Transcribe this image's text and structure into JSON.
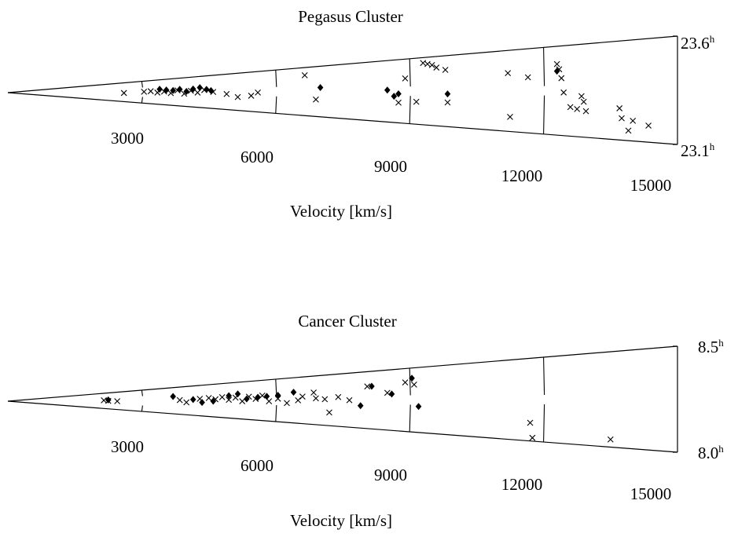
{
  "chart_data": [
    {
      "type": "scatter",
      "title": "Pegasus Cluster",
      "xlabel": "Velocity [km/s]",
      "ra_labels": [
        {
          "value": "23.6",
          "sup": "h"
        },
        {
          "value": "23.1",
          "sup": "h"
        }
      ],
      "ra_range": [
        23.1,
        23.6
      ],
      "velocity_range": [
        0,
        15000
      ],
      "velocity_ticks": [
        3000,
        6000,
        9000,
        12000,
        15000
      ],
      "projection": "wedge (cone diagram)",
      "series": [
        {
          "marker": "cross",
          "points": [
            {
              "v": 2600,
              "ra": 23.33
            },
            {
              "v": 3050,
              "ra": 23.36
            },
            {
              "v": 3200,
              "ra": 23.37
            },
            {
              "v": 3350,
              "ra": 23.34
            },
            {
              "v": 3500,
              "ra": 23.36
            },
            {
              "v": 3650,
              "ra": 23.33
            },
            {
              "v": 3800,
              "ra": 23.38
            },
            {
              "v": 3950,
              "ra": 23.32
            },
            {
              "v": 4100,
              "ra": 23.37
            },
            {
              "v": 4250,
              "ra": 23.34
            },
            {
              "v": 4400,
              "ra": 23.38
            },
            {
              "v": 4600,
              "ra": 23.35
            },
            {
              "v": 4900,
              "ra": 23.32
            },
            {
              "v": 5150,
              "ra": 23.28
            },
            {
              "v": 5450,
              "ra": 23.3
            },
            {
              "v": 5600,
              "ra": 23.34
            },
            {
              "v": 6650,
              "ra": 23.52
            },
            {
              "v": 6900,
              "ra": 23.27
            },
            {
              "v": 8750,
              "ra": 23.26
            },
            {
              "v": 8900,
              "ra": 23.45
            },
            {
              "v": 9150,
              "ra": 23.27
            },
            {
              "v": 9300,
              "ra": 23.56
            },
            {
              "v": 9400,
              "ra": 23.55
            },
            {
              "v": 9500,
              "ra": 23.54
            },
            {
              "v": 9600,
              "ra": 23.52
            },
            {
              "v": 9800,
              "ra": 23.5
            },
            {
              "v": 9850,
              "ra": 23.27
            },
            {
              "v": 11200,
              "ra": 23.46
            },
            {
              "v": 11250,
              "ra": 23.19
            },
            {
              "v": 11650,
              "ra": 23.43
            },
            {
              "v": 12300,
              "ra": 23.5
            },
            {
              "v": 12350,
              "ra": 23.47
            },
            {
              "v": 12400,
              "ra": 23.42
            },
            {
              "v": 12450,
              "ra": 23.34
            },
            {
              "v": 12600,
              "ra": 23.26
            },
            {
              "v": 12750,
              "ra": 23.25
            },
            {
              "v": 12850,
              "ra": 23.32
            },
            {
              "v": 12900,
              "ra": 23.29
            },
            {
              "v": 12950,
              "ra": 23.24
            },
            {
              "v": 13700,
              "ra": 23.26
            },
            {
              "v": 13750,
              "ra": 23.21
            },
            {
              "v": 13900,
              "ra": 23.15
            },
            {
              "v": 14000,
              "ra": 23.2
            },
            {
              "v": 14350,
              "ra": 23.18
            }
          ]
        },
        {
          "marker": "diamond",
          "points": [
            {
              "v": 3400,
              "ra": 23.41
            },
            {
              "v": 3550,
              "ra": 23.39
            },
            {
              "v": 3700,
              "ra": 23.38
            },
            {
              "v": 3850,
              "ra": 23.4
            },
            {
              "v": 4000,
              "ra": 23.36
            },
            {
              "v": 4150,
              "ra": 23.4
            },
            {
              "v": 4300,
              "ra": 23.42
            },
            {
              "v": 4450,
              "ra": 23.39
            },
            {
              "v": 4550,
              "ra": 23.37
            },
            {
              "v": 7000,
              "ra": 23.39
            },
            {
              "v": 8500,
              "ra": 23.36
            },
            {
              "v": 8650,
              "ra": 23.31
            },
            {
              "v": 8750,
              "ra": 23.33
            },
            {
              "v": 9850,
              "ra": 23.33
            },
            {
              "v": 12300,
              "ra": 23.46
            }
          ]
        }
      ]
    },
    {
      "type": "scatter",
      "title": "Cancer Cluster",
      "xlabel": "Velocity [km/s]",
      "ra_labels": [
        {
          "value": "8.5",
          "sup": "h"
        },
        {
          "value": "8.0",
          "sup": "h"
        }
      ],
      "ra_range": [
        8.0,
        8.5
      ],
      "velocity_range": [
        0,
        15000
      ],
      "velocity_ticks": [
        3000,
        6000,
        9000,
        12000,
        15000
      ],
      "projection": "wedge (cone diagram)",
      "series": [
        {
          "marker": "cross",
          "points": [
            {
              "v": 2150,
              "ra": 8.27
            },
            {
              "v": 2250,
              "ra": 8.25
            },
            {
              "v": 2450,
              "ra": 8.24
            },
            {
              "v": 3850,
              "ra": 8.26
            },
            {
              "v": 4000,
              "ra": 8.22
            },
            {
              "v": 4300,
              "ra": 8.28
            },
            {
              "v": 4500,
              "ra": 8.29
            },
            {
              "v": 4650,
              "ra": 8.27
            },
            {
              "v": 4800,
              "ra": 8.3
            },
            {
              "v": 4950,
              "ra": 8.26
            },
            {
              "v": 5100,
              "ra": 8.29
            },
            {
              "v": 5250,
              "ra": 8.24
            },
            {
              "v": 5400,
              "ra": 8.3
            },
            {
              "v": 5550,
              "ra": 8.27
            },
            {
              "v": 5700,
              "ra": 8.31
            },
            {
              "v": 5850,
              "ra": 8.24
            },
            {
              "v": 6050,
              "ra": 8.27
            },
            {
              "v": 6250,
              "ra": 8.22
            },
            {
              "v": 6500,
              "ra": 8.25
            },
            {
              "v": 6600,
              "ra": 8.29
            },
            {
              "v": 6850,
              "ra": 8.33
            },
            {
              "v": 6900,
              "ra": 8.27
            },
            {
              "v": 7100,
              "ra": 8.26
            },
            {
              "v": 7200,
              "ra": 8.13
            },
            {
              "v": 7400,
              "ra": 8.28
            },
            {
              "v": 7650,
              "ra": 8.25
            },
            {
              "v": 8050,
              "ra": 8.37
            },
            {
              "v": 8500,
              "ra": 8.31
            },
            {
              "v": 8900,
              "ra": 8.39
            },
            {
              "v": 9100,
              "ra": 8.37
            },
            {
              "v": 11700,
              "ra": 8.11
            },
            {
              "v": 11750,
              "ra": 8.02
            },
            {
              "v": 13500,
              "ra": 8.04
            }
          ]
        },
        {
          "marker": "diamond",
          "points": [
            {
              "v": 2250,
              "ra": 8.28
            },
            {
              "v": 3700,
              "ra": 8.33
            },
            {
              "v": 4150,
              "ra": 8.27
            },
            {
              "v": 4350,
              "ra": 8.22
            },
            {
              "v": 4600,
              "ra": 8.24
            },
            {
              "v": 4950,
              "ra": 8.32
            },
            {
              "v": 5150,
              "ra": 8.34
            },
            {
              "v": 5350,
              "ra": 8.27
            },
            {
              "v": 5600,
              "ra": 8.29
            },
            {
              "v": 5800,
              "ra": 8.3
            },
            {
              "v": 6050,
              "ra": 8.31
            },
            {
              "v": 6400,
              "ra": 8.34
            },
            {
              "v": 7900,
              "ra": 8.2
            },
            {
              "v": 8150,
              "ra": 8.37
            },
            {
              "v": 8600,
              "ra": 8.3
            },
            {
              "v": 9050,
              "ra": 8.42
            },
            {
              "v": 9200,
              "ra": 8.2
            }
          ]
        }
      ]
    }
  ]
}
